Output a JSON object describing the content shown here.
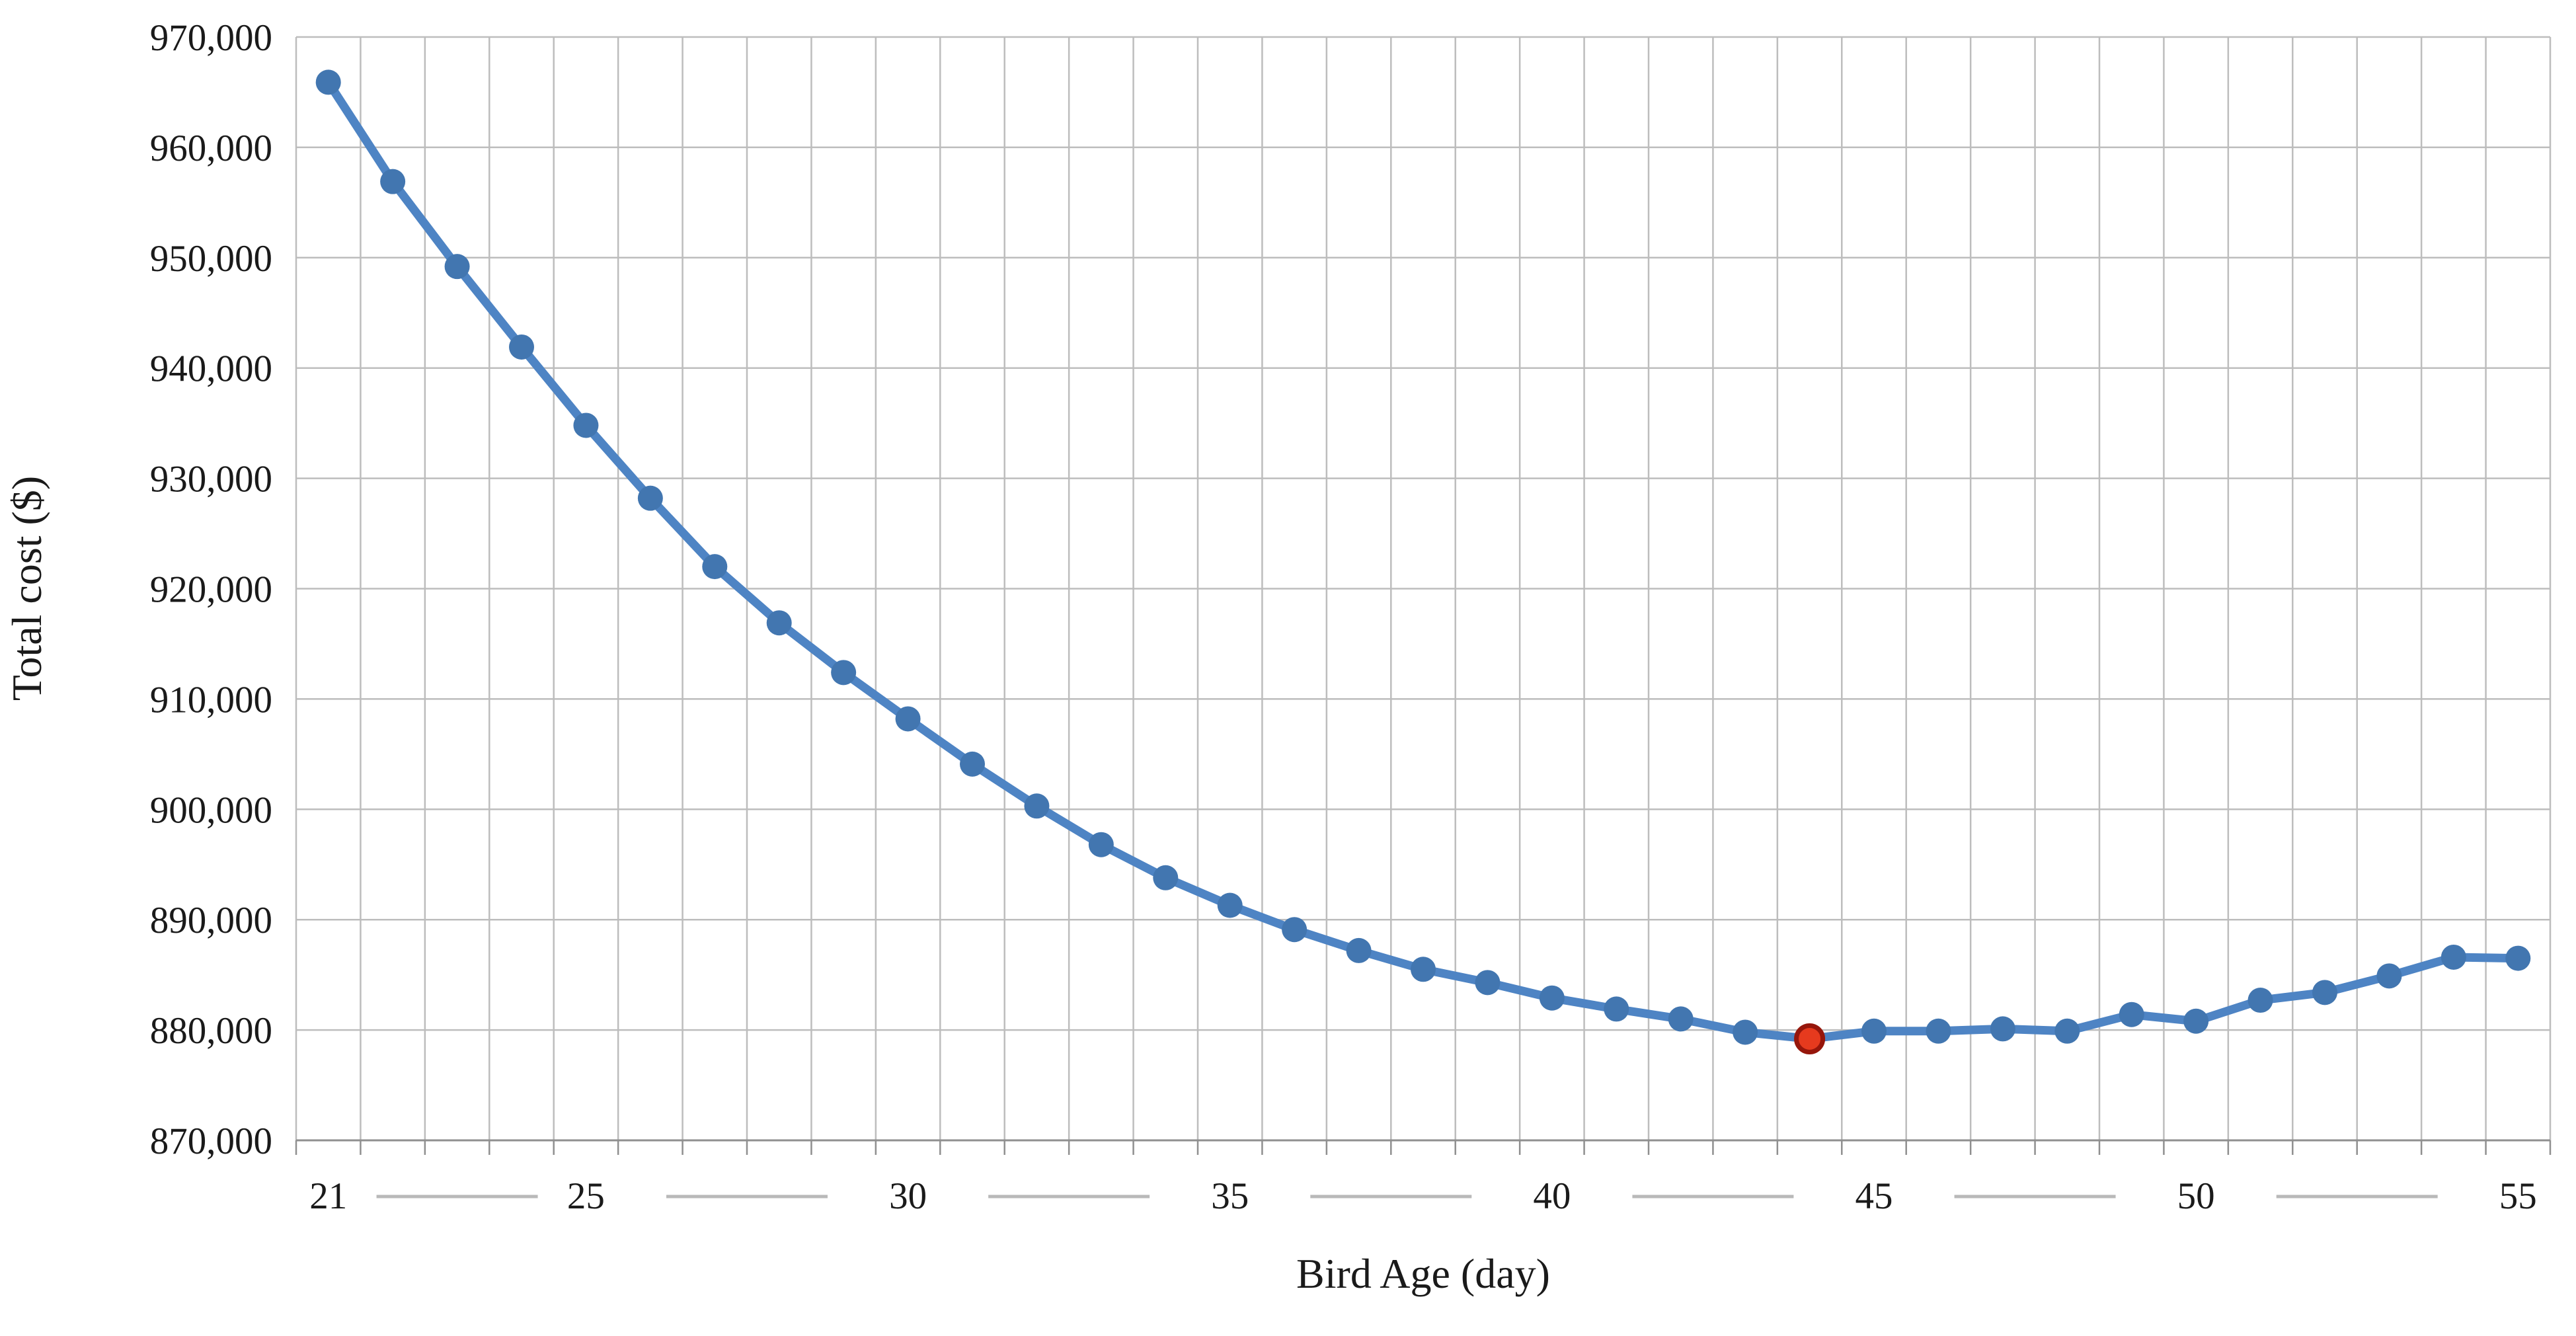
{
  "chart_data": {
    "type": "line",
    "title": "",
    "xlabel": "Bird Age (day)",
    "ylabel": "Total cost ($)",
    "x": [
      21,
      22,
      23,
      24,
      25,
      26,
      27,
      28,
      29,
      30,
      31,
      32,
      33,
      34,
      35,
      36,
      37,
      38,
      39,
      40,
      41,
      42,
      43,
      44,
      45,
      46,
      47,
      48,
      49,
      50,
      51,
      52,
      53,
      54,
      55
    ],
    "values": [
      965900,
      956900,
      949200,
      941900,
      934800,
      928200,
      922000,
      916900,
      912400,
      908200,
      904100,
      900300,
      896800,
      893800,
      891300,
      889100,
      887200,
      885500,
      884300,
      882900,
      881900,
      881000,
      879800,
      879200,
      879900,
      879900,
      880100,
      879900,
      881400,
      880800,
      882700,
      883400,
      884900,
      886600,
      886500
    ],
    "series_name": "Total cost",
    "highlight_point": {
      "day": 44,
      "value": 879200,
      "role": "minimum-cost-point"
    },
    "ylim": [
      870000,
      970000
    ],
    "ytick_step": 10000,
    "ytick_labels": [
      "870,000",
      "880,000",
      "890,000",
      "900,000",
      "910,000",
      "920,000",
      "930,000",
      "940,000",
      "950,000",
      "960,000",
      "970,000"
    ],
    "xtick_labeled_days": [
      21,
      25,
      30,
      35,
      40,
      45,
      50,
      55
    ],
    "grid": "both",
    "legend": "none",
    "colors": {
      "line": "#4E84C4",
      "marker": "#4276B0",
      "highlight_fill": "#E63A1E",
      "highlight_stroke": "#96160B",
      "gridline": "#bdbdbd",
      "axis_line": "#8f8f8f",
      "separator_dash": "#b9b9b9",
      "text": "#1a1a1a",
      "background": "#ffffff"
    }
  }
}
